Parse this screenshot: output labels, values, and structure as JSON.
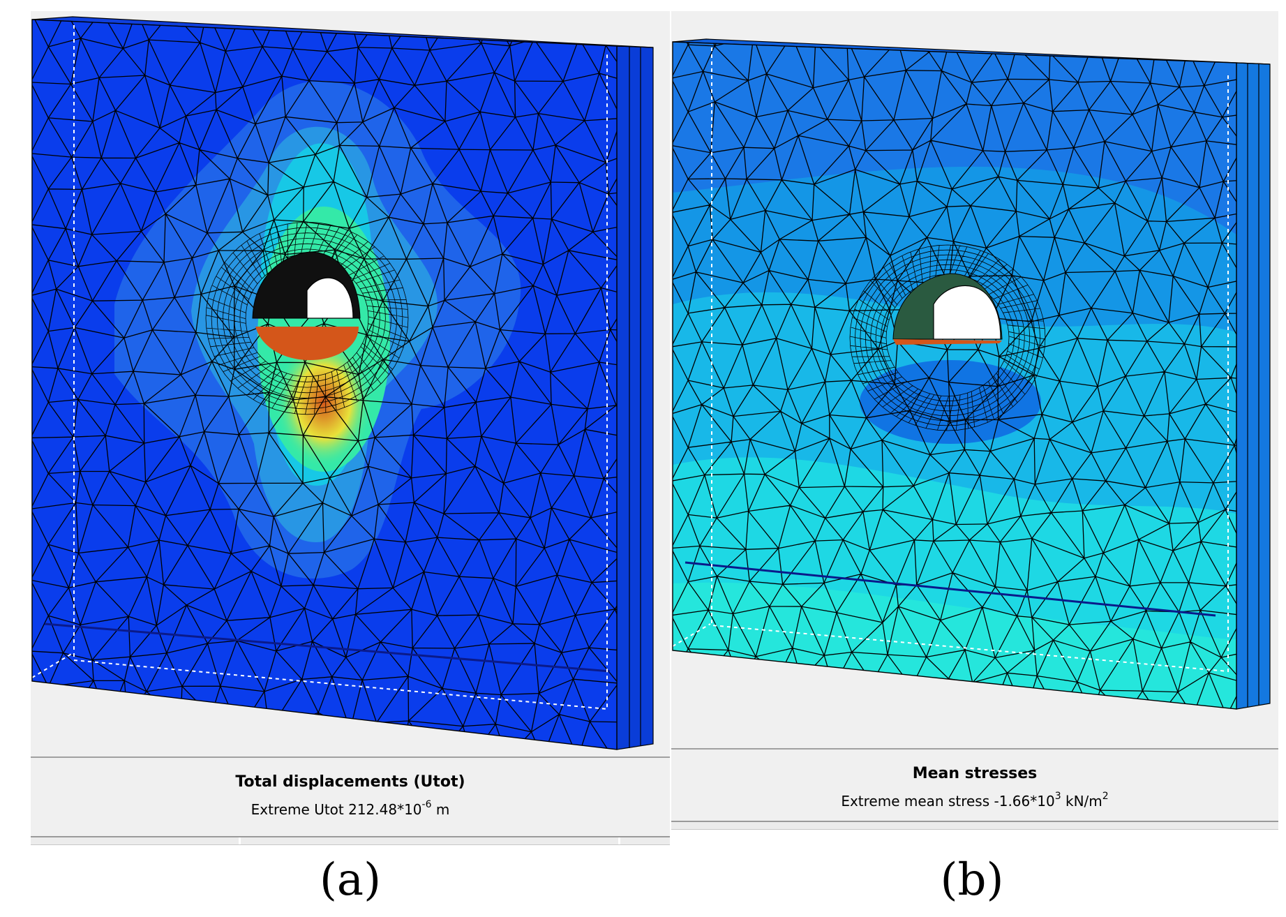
{
  "panels": [
    {
      "id": "a",
      "title": "Total displacements (Utot)",
      "extreme_prefix": "Extreme Utot 212.48*10",
      "exponent": "-6",
      "unit": "m",
      "unit_exponent": "",
      "caption": "(a)",
      "palette": {
        "background": "#0a3dec",
        "ring1": "#1f64ea",
        "ring2": "#2896e4",
        "ring3": "#17c8e6",
        "core": "#34e9a8",
        "hot": "#e8e23a",
        "extreme": "#d4561a"
      }
    },
    {
      "id": "b",
      "title": "Mean stresses",
      "extreme_prefix": "Extreme mean stress -1.66*10",
      "exponent": "3",
      "unit": "kN/m",
      "unit_exponent": "2",
      "caption": "(b)",
      "palette": {
        "background": "#1a78e6",
        "ring1": "#1496e6",
        "ring2": "#18b8e8",
        "ring3": "#1ed8e4",
        "lower": "#25e6dc",
        "dark": "#0b3cde",
        "extreme": "#d4561a"
      }
    }
  ]
}
